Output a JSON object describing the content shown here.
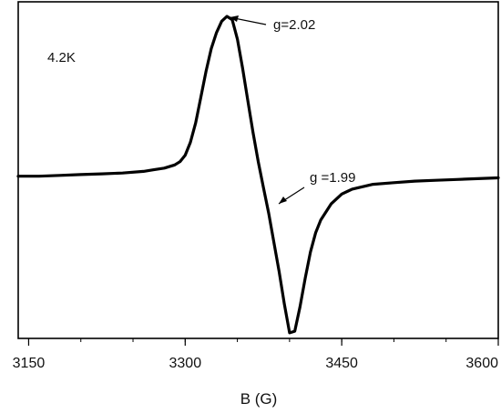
{
  "chart_data": {
    "type": "line",
    "title": "",
    "xlabel": "B (G)",
    "ylabel": "",
    "xlim": [
      3140,
      3600
    ],
    "ylim": [
      -1.0,
      1.0
    ],
    "x_ticks": [
      3150,
      3300,
      3450,
      3600
    ],
    "y_ticks_visible": false,
    "grid": false,
    "legend": "none",
    "line_color": "#000000",
    "series": [
      {
        "name": "",
        "x": [
          3140,
          3160,
          3180,
          3200,
          3220,
          3240,
          3260,
          3270,
          3280,
          3290,
          3295,
          3300,
          3305,
          3310,
          3315,
          3320,
          3325,
          3330,
          3335,
          3340,
          3345,
          3350,
          3355,
          3360,
          3365,
          3370,
          3375,
          3380,
          3385,
          3390,
          3395,
          3400,
          3405,
          3410,
          3415,
          3420,
          3425,
          3430,
          3440,
          3450,
          3460,
          3480,
          3500,
          3520,
          3540,
          3560,
          3580,
          3600
        ],
        "y": [
          0.01,
          0.01,
          0.015,
          0.02,
          0.025,
          0.03,
          0.04,
          0.05,
          0.06,
          0.08,
          0.1,
          0.14,
          0.22,
          0.34,
          0.5,
          0.66,
          0.8,
          0.9,
          0.97,
          1.0,
          0.98,
          0.86,
          0.68,
          0.48,
          0.28,
          0.1,
          -0.06,
          -0.22,
          -0.4,
          -0.58,
          -0.78,
          -0.96,
          -0.95,
          -0.8,
          -0.62,
          -0.46,
          -0.34,
          -0.26,
          -0.16,
          -0.1,
          -0.07,
          -0.04,
          -0.03,
          -0.02,
          -0.015,
          -0.01,
          -0.005,
          0.0
        ]
      }
    ],
    "annotations": [
      {
        "text": "4.2K"
      },
      {
        "text": "g=2.02",
        "points_to_x": 3343
      },
      {
        "text": "g =1.99",
        "points_to_x": 3373
      }
    ]
  }
}
